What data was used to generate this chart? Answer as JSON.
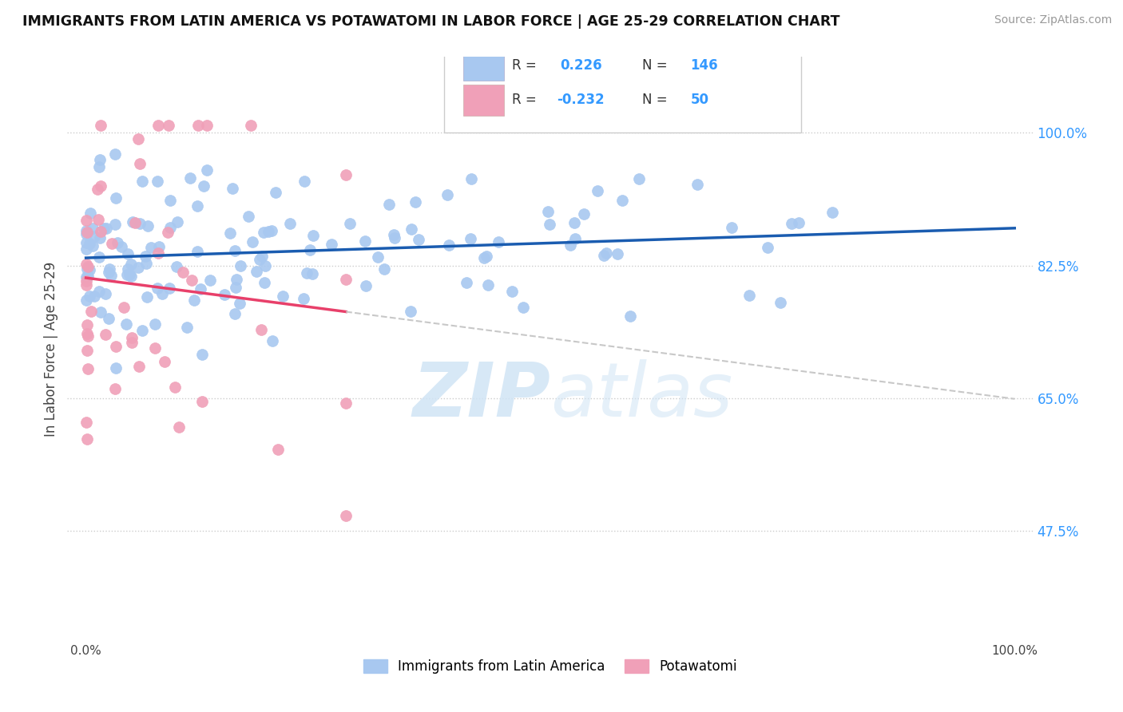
{
  "title": "IMMIGRANTS FROM LATIN AMERICA VS POTAWATOMI IN LABOR FORCE | AGE 25-29 CORRELATION CHART",
  "source": "Source: ZipAtlas.com",
  "ylabel": "In Labor Force | Age 25-29",
  "y_ticks": [
    0.475,
    0.65,
    0.825,
    1.0
  ],
  "y_tick_labels": [
    "47.5%",
    "65.0%",
    "82.5%",
    "100.0%"
  ],
  "legend_labels": [
    "Immigrants from Latin America",
    "Potawatomi"
  ],
  "R_blue": 0.226,
  "N_blue": 146,
  "R_pink": -0.232,
  "N_pink": 50,
  "blue_scatter_color": "#A8C8F0",
  "pink_scatter_color": "#F0A0B8",
  "blue_line_color": "#1A5CB0",
  "pink_line_color": "#E8406A",
  "dashed_line_color": "#C8C8C8",
  "tick_color": "#3399FF",
  "watermark_color": "#D0E4F5",
  "background_color": "#FFFFFF",
  "seed": 42
}
